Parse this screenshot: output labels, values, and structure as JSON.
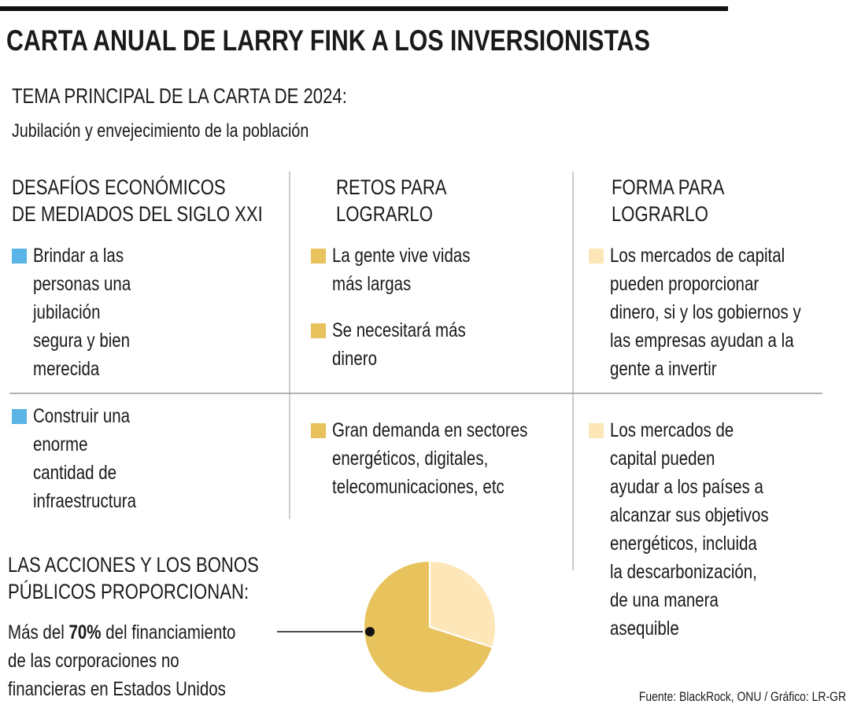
{
  "header": {
    "title": "CARTA ANUAL DE LARRY FINK A LOS INVERSIONISTAS"
  },
  "theme": {
    "label": "TEMA PRINCIPAL DE LA CARTA DE 2024:",
    "text": "Jubilación y envejecimiento de la población"
  },
  "columns": [
    {
      "heading": [
        "DESAFÍOS ECONÓMICOS",
        "DE MEDIADOS DEL SIGLO XXI"
      ],
      "color": "#5ab4e5",
      "items": [
        [
          "Brindar a las",
          "personas una",
          "jubilación",
          "segura y bien",
          "merecida"
        ],
        [
          "Construir una",
          "enorme",
          "cantidad de",
          "infraestructura"
        ]
      ]
    },
    {
      "heading": [
        "RETOS PARA",
        "LOGRARLO"
      ],
      "color": "#e8c25c",
      "items": [
        [
          "La gente vive vidas",
          "más largas"
        ],
        [
          "Se necesitará más",
          "dinero"
        ],
        [
          "Gran demanda en sectores",
          "energéticos,  digitales,",
          "telecomunicaciones, etc"
        ]
      ]
    },
    {
      "heading": [
        "FORMA PARA",
        "LOGRARLO"
      ],
      "color": "#fde6b8",
      "items": [
        [
          "Los mercados de capital",
          "pueden proporcionar",
          "dinero, si y los gobiernos y",
          "las empresas ayudan a la",
          "gente a invertir"
        ],
        [
          "Los mercados de",
          "capital pueden",
          "ayudar a los países a",
          "alcanzar sus objetivos",
          "energéticos, incluida",
          "la descarbonización,",
          "de una manera",
          "asequible"
        ]
      ]
    }
  ],
  "summary": {
    "heading": [
      "LAS ACCIONES Y LOS BONOS",
      "PÚBLICOS PROPORCIONAN:"
    ],
    "text_before": "Más del ",
    "highlight": "70%",
    "text_after": " del financiamiento",
    "lines": [
      "de las corporaciones no",
      "financieras en Estados Unidos"
    ]
  },
  "pie": {
    "values": [
      70,
      30
    ],
    "colors": [
      "#e8c25c",
      "#fde6b8"
    ]
  },
  "source": "Fuente: BlackRock, ONU / Gráfico: LR-GR"
}
